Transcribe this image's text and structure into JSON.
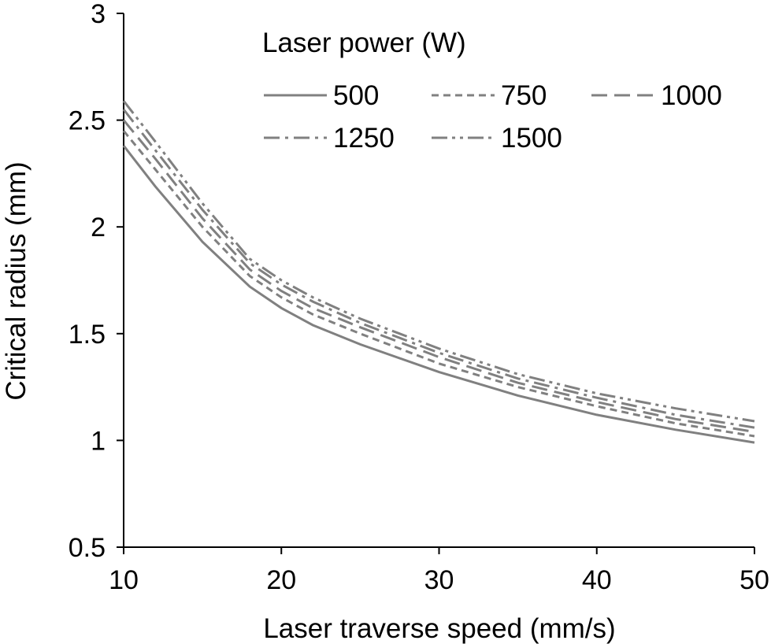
{
  "chart_data": {
    "type": "line",
    "xlabel": "Laser traverse speed (mm/s)",
    "ylabel": "Critical radius (mm)",
    "xlim": [
      10,
      50
    ],
    "ylim": [
      0.5,
      3
    ],
    "xticks": [
      "10",
      "20",
      "30",
      "40",
      "50"
    ],
    "yticks": [
      "0.5",
      "1",
      "1.5",
      "2",
      "2.5",
      "3"
    ],
    "grid": false,
    "legend": {
      "title": "Laser power (W)",
      "placement": "top-right",
      "columns": 3
    },
    "line_color": "#808080",
    "x": [
      10,
      12,
      15,
      18,
      20,
      22,
      25,
      30,
      35,
      40,
      45,
      50
    ],
    "series": [
      {
        "name": "500",
        "dash": "solid",
        "values": [
          2.38,
          2.19,
          1.93,
          1.72,
          1.62,
          1.54,
          1.45,
          1.32,
          1.21,
          1.12,
          1.05,
          0.99
        ]
      },
      {
        "name": "750",
        "dash": "short-dash",
        "values": [
          2.45,
          2.27,
          2.0,
          1.77,
          1.67,
          1.59,
          1.5,
          1.36,
          1.25,
          1.16,
          1.08,
          1.02
        ]
      },
      {
        "name": "1000",
        "dash": "long-dash",
        "values": [
          2.5,
          2.32,
          2.04,
          1.8,
          1.7,
          1.62,
          1.53,
          1.39,
          1.27,
          1.18,
          1.1,
          1.04
        ]
      },
      {
        "name": "1250",
        "dash": "dash-dot",
        "values": [
          2.55,
          2.36,
          2.08,
          1.83,
          1.73,
          1.65,
          1.55,
          1.41,
          1.29,
          1.2,
          1.12,
          1.06
        ]
      },
      {
        "name": "1500",
        "dash": "dash-dot-dot",
        "values": [
          2.59,
          2.4,
          2.11,
          1.85,
          1.75,
          1.67,
          1.57,
          1.43,
          1.31,
          1.22,
          1.15,
          1.09
        ]
      }
    ]
  }
}
